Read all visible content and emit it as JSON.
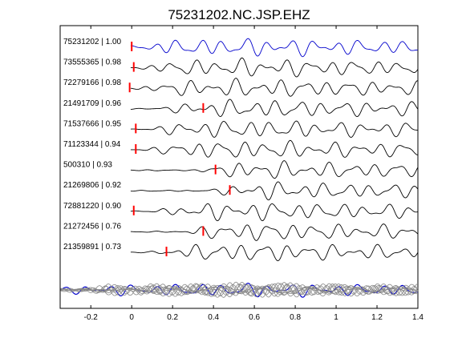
{
  "chart_data": {
    "type": "line",
    "title": "75231202.NC.JSP.EHZ",
    "xlabel": "",
    "ylabel": "",
    "xlim": [
      -0.35,
      1.4
    ],
    "x_ticks": [
      -0.2,
      0,
      0.2,
      0.4,
      0.6,
      0.8,
      1,
      1.2,
      1.4
    ],
    "x_tick_labels": [
      "-0.2",
      "0",
      "0.2",
      "0.4",
      "0.6",
      "0.8",
      "1",
      "1.2",
      "1.4"
    ],
    "grid": false,
    "colors": {
      "template": "#0000cc",
      "trace": "#000000",
      "pick": "#ff0000",
      "stack": "#888888"
    },
    "traces": [
      {
        "label": "75231202 | 1.00",
        "pick_time": 0.0,
        "onset": -0.05,
        "template": true
      },
      {
        "label": "73555365 | 0.98",
        "pick_time": 0.01,
        "onset": 0.0
      },
      {
        "label": "72279166 | 0.98",
        "pick_time": -0.01,
        "onset": 0.0
      },
      {
        "label": "21491709 | 0.96",
        "pick_time": 0.35,
        "onset": 0.1
      },
      {
        "label": "71537666 | 0.95",
        "pick_time": 0.02,
        "onset": 0.03
      },
      {
        "label": "71123344 | 0.94",
        "pick_time": 0.02,
        "onset": 0.03
      },
      {
        "label": "500310 | 0.93",
        "pick_time": 0.41,
        "onset": 0.3
      },
      {
        "label": "21269806 | 0.92",
        "pick_time": 0.48,
        "onset": 0.35
      },
      {
        "label": "72881220 | 0.90",
        "pick_time": 0.01,
        "onset": 0.08
      },
      {
        "label": "21272456 | 0.76",
        "pick_time": 0.35,
        "onset": 0.2
      },
      {
        "label": "21359891 | 0.73",
        "pick_time": 0.17,
        "onset": 0.08
      }
    ]
  }
}
